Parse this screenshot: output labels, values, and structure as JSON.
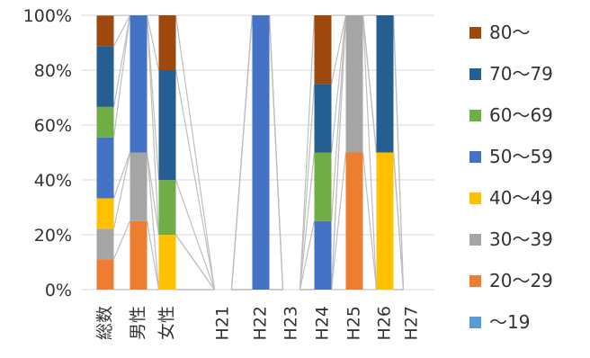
{
  "chart_data": {
    "type": "bar",
    "stacked": "percent",
    "categories": [
      "総数",
      "男性",
      "女性",
      "H21",
      "H22",
      "H23",
      "H24",
      "H25",
      "H26",
      "H27"
    ],
    "y_ticks": [
      "0%",
      "20%",
      "40%",
      "60%",
      "80%",
      "100%"
    ],
    "ylim": [
      0,
      100
    ],
    "grid": true,
    "legend_position": "right",
    "series": [
      {
        "name": "～19",
        "color": "#5b9bd5",
        "values": [
          0,
          0,
          0,
          0,
          0,
          0,
          0,
          0,
          0,
          0
        ]
      },
      {
        "name": "20～29",
        "color": "#ed7d31",
        "values": [
          11.1,
          25,
          0,
          0,
          0,
          0,
          0,
          50,
          0,
          0
        ]
      },
      {
        "name": "30～39",
        "color": "#a5a5a5",
        "values": [
          11.1,
          25,
          0,
          0,
          0,
          0,
          0,
          50,
          0,
          0
        ]
      },
      {
        "name": "40～49",
        "color": "#ffc000",
        "values": [
          11.1,
          0,
          20,
          0,
          0,
          0,
          0,
          0,
          50,
          0
        ]
      },
      {
        "name": "50～59",
        "color": "#4472c4",
        "values": [
          22.2,
          50,
          0,
          0,
          100,
          0,
          25,
          0,
          0,
          0
        ]
      },
      {
        "name": "60～69",
        "color": "#70ad47",
        "values": [
          11.1,
          0,
          20,
          0,
          0,
          0,
          25,
          0,
          0,
          0
        ]
      },
      {
        "name": "70～79",
        "color": "#255e91",
        "values": [
          22.2,
          0,
          40,
          0,
          0,
          0,
          25,
          0,
          50,
          0
        ]
      },
      {
        "name": "80～",
        "color": "#9e480e",
        "values": [
          11.1,
          0,
          20,
          0,
          0,
          0,
          25,
          0,
          0,
          0
        ]
      }
    ]
  }
}
